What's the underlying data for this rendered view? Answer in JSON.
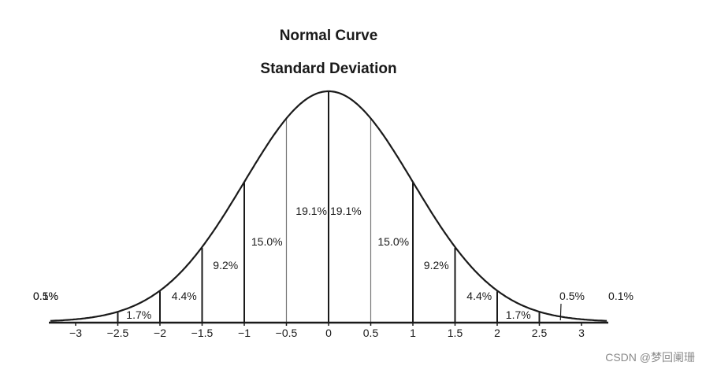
{
  "title": "Normal Curve",
  "subtitle": "Standard Deviation",
  "watermark": "CSDN @梦回阑珊",
  "chart_data": {
    "type": "area",
    "title": "Normal Curve",
    "subtitle": "Standard Deviation",
    "xlabel": "",
    "ylabel": "",
    "xlim": [
      -3.3,
      3.3
    ],
    "x_ticks": [
      -3,
      -2.5,
      -2,
      -1.5,
      -1,
      -0.5,
      0,
      0.5,
      1,
      1.5,
      2,
      2.5,
      3
    ],
    "x_tick_labels": [
      "−3",
      "−2.5",
      "−2",
      "−1.5",
      "−1",
      "−0.5",
      "0",
      "0.5",
      "1",
      "1.5",
      "2",
      "2.5",
      "3"
    ],
    "grid": false,
    "legend": "none",
    "segments": [
      {
        "range": [
          -3.3,
          -3
        ],
        "label": "0.1%"
      },
      {
        "range": [
          -3,
          -2.5
        ],
        "label": "0.5%"
      },
      {
        "range": [
          -2.5,
          -2
        ],
        "label": "1.7%"
      },
      {
        "range": [
          -2,
          -1.5
        ],
        "label": "4.4%"
      },
      {
        "range": [
          -1.5,
          -1
        ],
        "label": "9.2%"
      },
      {
        "range": [
          -1,
          -0.5
        ],
        "label": "15.0%"
      },
      {
        "range": [
          -0.5,
          0
        ],
        "label": "19.1%"
      },
      {
        "range": [
          0,
          0.5
        ],
        "label": "19.1%"
      },
      {
        "range": [
          0.5,
          1
        ],
        "label": "15.0%"
      },
      {
        "range": [
          1,
          1.5
        ],
        "label": "9.2%"
      },
      {
        "range": [
          1.5,
          2
        ],
        "label": "4.4%"
      },
      {
        "range": [
          2,
          2.5
        ],
        "label": "1.7%"
      },
      {
        "range": [
          2.5,
          3
        ],
        "label": "0.5%"
      },
      {
        "range": [
          3,
          3.3
        ],
        "label": "0.1%"
      }
    ]
  }
}
